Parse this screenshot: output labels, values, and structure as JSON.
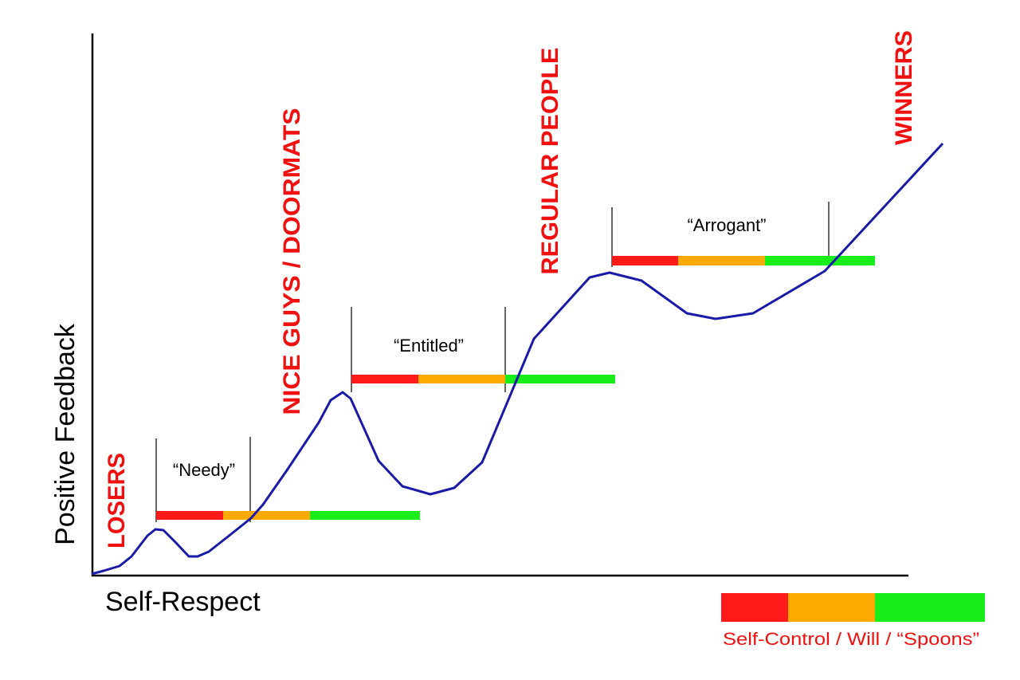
{
  "axes": {
    "x_label": "Self-Respect",
    "y_label": "Positive Feedback"
  },
  "groups": [
    {
      "label": "LOSERS"
    },
    {
      "label": "NICE GUYS / DOORMATS"
    },
    {
      "label": "REGULAR PEOPLE"
    },
    {
      "label": "WINNERS"
    }
  ],
  "zones": [
    {
      "label": "“Needy”"
    },
    {
      "label": "“Entitled”"
    },
    {
      "label": "“Arrogant”"
    }
  ],
  "legend": {
    "label": "Self-Control / Will / “Spoons”"
  }
}
